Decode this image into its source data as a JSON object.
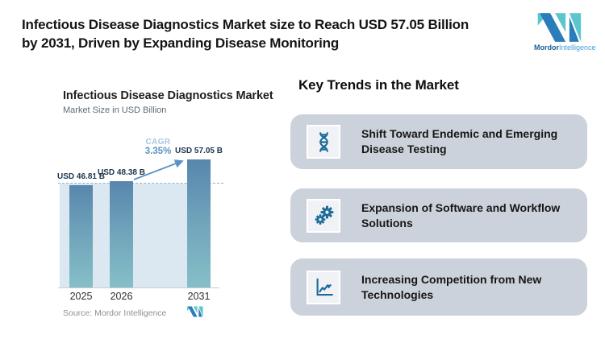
{
  "header": {
    "title_lines": [
      "Infectious Disease Diagnostics Market size to Reach USD 57.05 Billion",
      "by 2031, Driven by Expanding Disease Monitoring"
    ]
  },
  "logo": {
    "name_bold": "Mordor",
    "name_light": "Intelligence",
    "blue": "#2b7cba",
    "teal": "#5cc6ce"
  },
  "chart_data": {
    "type": "bar",
    "title": "Infectious Disease Diagnostics Market",
    "subtitle": "Market Size in USD Billion",
    "categories": [
      "2025",
      "2026",
      "2031"
    ],
    "values": [
      46.81,
      48.38,
      57.05
    ],
    "bar_labels": [
      "USD 46.81 B",
      "USD 48.38 B",
      "USD 57.05 B"
    ],
    "cagr": {
      "label": "CAGR",
      "value": "3.35%"
    },
    "source": "Source: Mordor Intelligence",
    "ylabel": "Market Size in USD Billion",
    "ylim": [
      0,
      60
    ],
    "legend": "none",
    "grid": "off",
    "plot_bg": "#dce8f1",
    "bar_color_top": "#5886ad",
    "bar_color_bottom": "#86bfc8",
    "dashed_reference_line_at": 46.81
  },
  "trends": {
    "heading": "Key Trends in the Market",
    "card_bg": "#ccd2db",
    "icon_color": "#1d6b99",
    "cards": [
      {
        "icon": "dna-icon",
        "title": "Shift Toward Endemic and Emerging Disease Testing"
      },
      {
        "icon": "gears-icon",
        "title": "Expansion of Software and Workflow Solutions"
      },
      {
        "icon": "line-chart-icon",
        "title": "Increasing Competition from New Technologies"
      }
    ]
  }
}
